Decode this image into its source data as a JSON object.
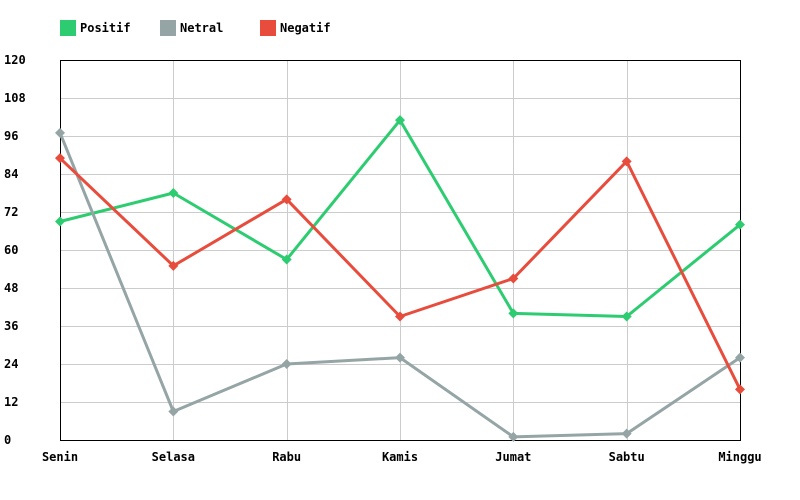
{
  "chart_data": {
    "type": "line",
    "title": "",
    "xlabel": "",
    "ylabel": "",
    "categories": [
      "Senin",
      "Selasa",
      "Rabu",
      "Kamis",
      "Jumat",
      "Sabtu",
      "Minggu"
    ],
    "series": [
      {
        "name": "Positif",
        "color": "#2ecc71",
        "values": [
          69,
          78,
          57,
          101,
          40,
          39,
          68
        ]
      },
      {
        "name": "Netral",
        "color": "#95a5a6",
        "values": [
          97,
          9,
          24,
          26,
          1,
          2,
          26
        ]
      },
      {
        "name": "Negatif",
        "color": "#e74c3c",
        "values": [
          89,
          55,
          76,
          39,
          51,
          88,
          16
        ]
      }
    ],
    "ylim": [
      0,
      120
    ],
    "yticks": [
      0,
      12,
      24,
      36,
      48,
      60,
      72,
      84,
      96,
      108,
      120
    ],
    "grid": true,
    "legend_position": "top-left",
    "marker": "diamond"
  },
  "legend": {
    "items": [
      {
        "label": "Positif",
        "color": "#2ecc71"
      },
      {
        "label": "Netral",
        "color": "#95a5a6"
      },
      {
        "label": "Negatif",
        "color": "#e74c3c"
      }
    ]
  },
  "colors": {
    "grid": "#cccccc",
    "frame": "#000000"
  }
}
